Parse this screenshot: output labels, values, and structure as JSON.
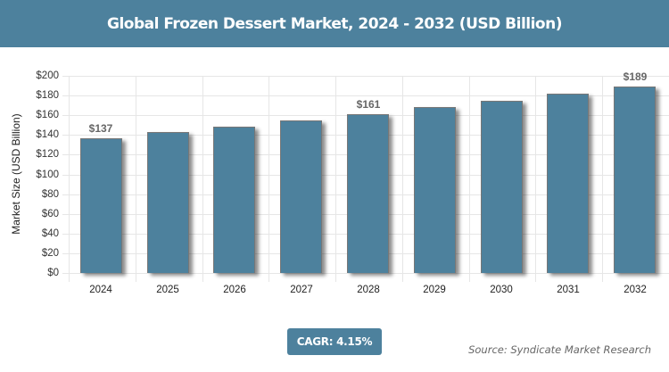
{
  "header": {
    "title": "Global Frozen Dessert Market, 2024 - 2032 (USD Billion)"
  },
  "footer": {
    "cagr": "CAGR: 4.15%",
    "source": "Source: Syndicate Market Research"
  },
  "colors": {
    "bar": "#4d819d",
    "header": "#4d819d"
  },
  "chart_data": {
    "type": "bar",
    "title": "Global Frozen Dessert Market, 2024 - 2032 (USD Billion)",
    "xlabel": "",
    "ylabel": "Market Size (USD Billion)",
    "categories": [
      "2024",
      "2025",
      "2026",
      "2027",
      "2028",
      "2029",
      "2030",
      "2031",
      "2032"
    ],
    "values": [
      137,
      142.7,
      148.6,
      154.8,
      161,
      167.9,
      174.9,
      182.1,
      189
    ],
    "data_labels": {
      "2024": "$137",
      "2028": "$161",
      "2032": "$189"
    },
    "yticks": [
      "$0",
      "$20",
      "$40",
      "$60",
      "$80",
      "$100",
      "$120",
      "$140",
      "$160",
      "$180",
      "$200"
    ],
    "ylim": [
      0,
      200
    ],
    "grid": true,
    "legend": "none",
    "annotations": [
      "CAGR: 4.15%",
      "Source: Syndicate Market Research"
    ]
  }
}
